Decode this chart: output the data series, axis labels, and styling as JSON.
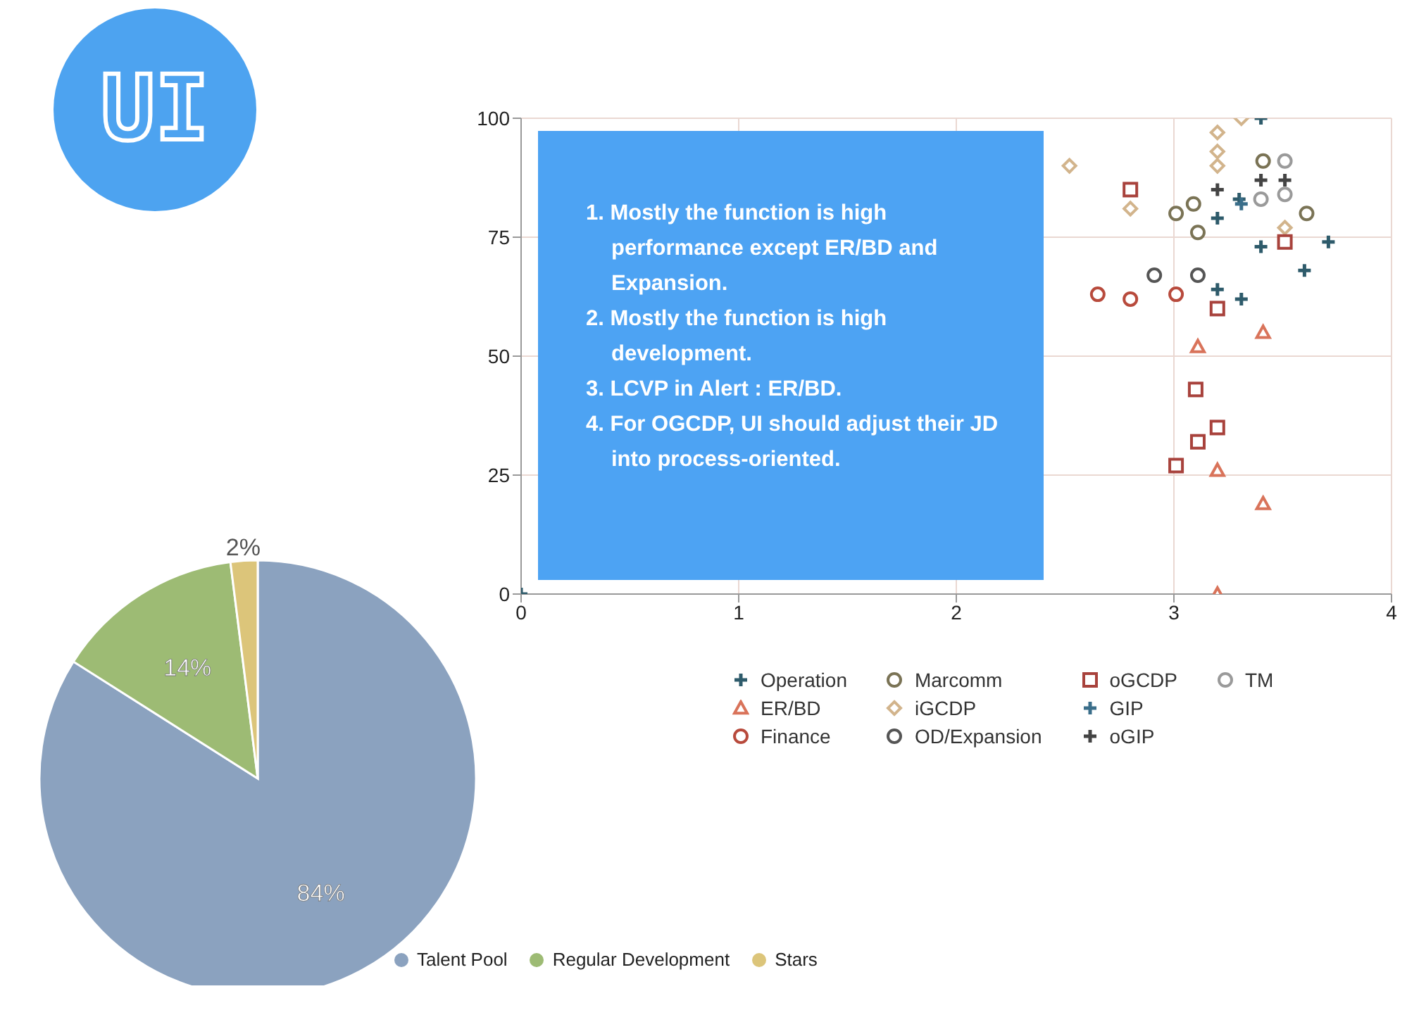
{
  "chart_data": [
    {
      "type": "pie",
      "title": "UI",
      "categories": [
        "Talent Pool",
        "Regular Development",
        "Stars"
      ],
      "values": [
        84,
        14,
        2
      ],
      "colors": [
        "#8ba2bf",
        "#9dbb74",
        "#dcc57a"
      ],
      "legend": "bottom",
      "value_labels": [
        "84%",
        "14%",
        "2%"
      ]
    },
    {
      "type": "scatter",
      "xlim": [
        0,
        4
      ],
      "xticks": [
        0,
        1,
        2,
        3,
        4
      ],
      "ylim": [
        0,
        100
      ],
      "yticks": [
        0,
        25,
        50,
        75,
        100
      ],
      "grid": true,
      "legend": "bottom",
      "annotations": [
        "1. Mostly the function is high performance except ER/BD and Expansion.",
        "2. Mostly the function is high development.",
        "3. LCVP in Alert : ER/BD.",
        "4. For OGCDP, UI should adjust their JD into process-oriented."
      ],
      "series": [
        {
          "name": "Operation",
          "color": "#2e5b6b",
          "marker": "cross",
          "x": [
            0,
            3.4,
            3.2,
            3.3,
            3.4,
            3.71,
            3.6,
            3.2,
            3.31
          ],
          "values": [
            0,
            100,
            79,
            83,
            73,
            74,
            68,
            64,
            62
          ]
        },
        {
          "name": "ER/BD",
          "color": "#d9735a",
          "marker": "triangle",
          "x": [
            3.41,
            3.11,
            3.2,
            3.41,
            3.2
          ],
          "values": [
            55,
            52,
            26,
            19,
            0
          ]
        },
        {
          "name": "Finance",
          "color": "#b84a3c",
          "marker": "circle",
          "x": [
            2.65,
            2.8,
            3.01
          ],
          "values": [
            63,
            62,
            63
          ]
        },
        {
          "name": "Marcomm",
          "color": "#7a7355",
          "marker": "circle",
          "x": [
            3.01,
            3.09,
            3.11,
            3.61,
            3.41
          ],
          "values": [
            80,
            82,
            76,
            80,
            91
          ]
        },
        {
          "name": "iGCDP",
          "color": "#d2b48c",
          "marker": "diamond",
          "x": [
            2.52,
            3.31,
            3.2,
            3.2,
            3.2,
            2.8,
            3.51
          ],
          "values": [
            90,
            100,
            97,
            93,
            90,
            81,
            77
          ]
        },
        {
          "name": "OD/Expansion",
          "color": "#555555",
          "marker": "circle",
          "x": [
            2.91,
            3.11
          ],
          "values": [
            67,
            67
          ]
        },
        {
          "name": "oGCDP",
          "color": "#a8423c",
          "marker": "square",
          "x": [
            2.8,
            3.51,
            3.2,
            3.1,
            3.2,
            3.11,
            3.01
          ],
          "values": [
            85,
            74,
            60,
            43,
            35,
            32,
            27
          ]
        },
        {
          "name": "GIP",
          "color": "#3a6e8a",
          "marker": "cross",
          "x": [
            3.31
          ],
          "values": [
            82
          ]
        },
        {
          "name": "oGIP",
          "color": "#444444",
          "marker": "cross",
          "x": [
            3.2,
            3.51,
            3.4
          ],
          "values": [
            85,
            87,
            87
          ]
        },
        {
          "name": "TM",
          "color": "#9a9a9a",
          "marker": "circle",
          "x": [
            3.4,
            3.51,
            3.51
          ],
          "values": [
            83,
            91,
            84
          ]
        }
      ]
    }
  ]
}
